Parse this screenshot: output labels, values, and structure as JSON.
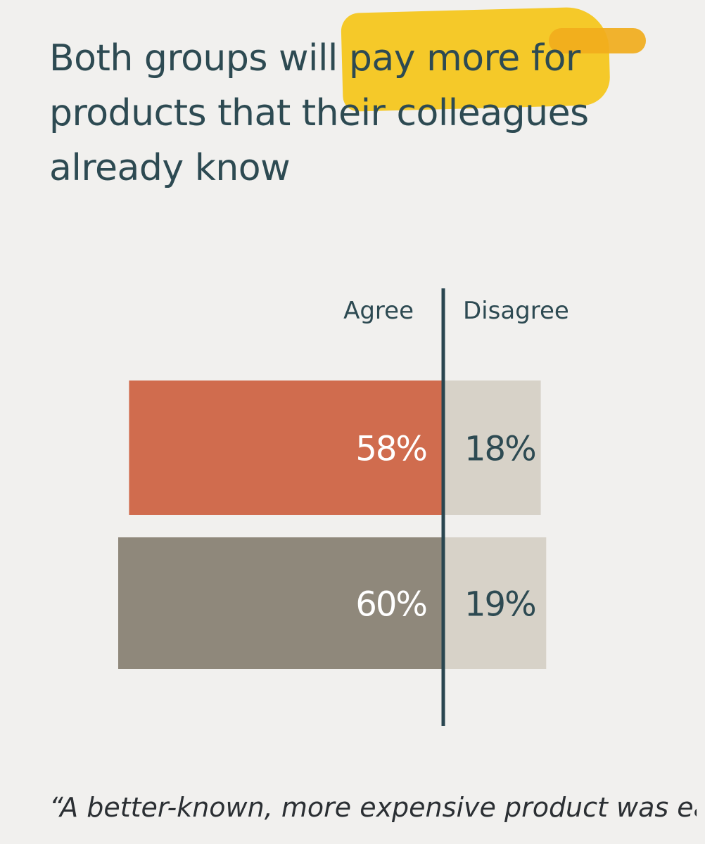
{
  "title": "Both groups will pay more for\nproducts that their colleagues\nalready know",
  "quote": "“A better-known, more expensive product\nwas easier to agree than a less well known",
  "colors": {
    "highlight": "#f5c518",
    "text": "#2d4a52",
    "axis": "#2a4650",
    "disagree_bar": "#d7d2c8",
    "background": "#f1f0ee"
  },
  "chart_data": {
    "type": "bar",
    "orientation": "horizontal",
    "layout": "diverging",
    "column_labels": {
      "agree": "Agree",
      "disagree": "Disagree"
    },
    "rows": [
      {
        "agree": 58,
        "disagree": 18,
        "color": "#d06c4e",
        "agree_label": "58%",
        "disagree_label": "18%"
      },
      {
        "agree": 60,
        "disagree": 19,
        "color": "#8f887b",
        "agree_label": "60%",
        "disagree_label": "19%"
      }
    ]
  }
}
